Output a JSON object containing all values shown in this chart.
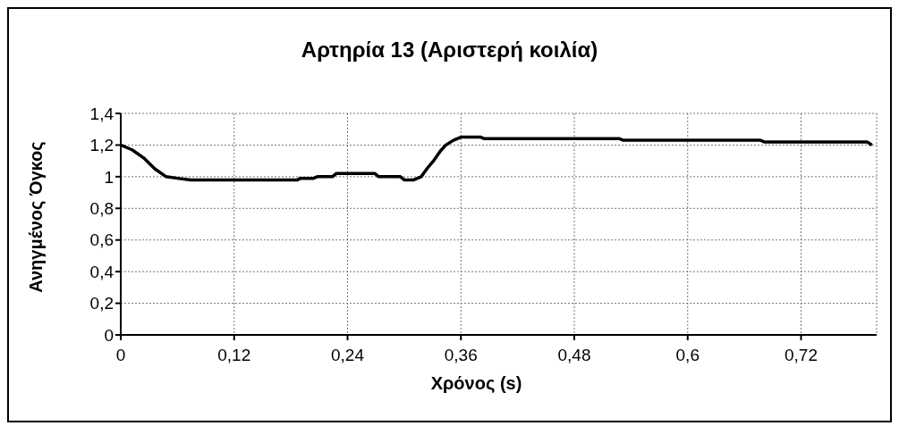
{
  "chart_data": {
    "type": "line",
    "title": "Αρτηρία 13 (Αριστερή κοιλία)",
    "xlabel": "Χρόνος (s)",
    "ylabel": "Ανηγμένος Όγκος",
    "x": [
      0,
      0.012,
      0.024,
      0.036,
      0.048,
      0.06,
      0.074,
      0.12,
      0.187,
      0.19,
      0.204,
      0.208,
      0.224,
      0.228,
      0.269,
      0.273,
      0.296,
      0.3,
      0.31,
      0.318,
      0.324,
      0.331,
      0.338,
      0.344,
      0.352,
      0.36,
      0.381,
      0.385,
      0.528,
      0.532,
      0.677,
      0.681,
      0.79,
      0.795
    ],
    "series": [
      {
        "color": "#000000",
        "values": [
          1.2,
          1.17,
          1.12,
          1.05,
          1.0,
          0.99,
          0.98,
          0.98,
          0.98,
          0.99,
          0.99,
          1.0,
          1.0,
          1.02,
          1.02,
          1.0,
          1.0,
          0.98,
          0.98,
          1.0,
          1.05,
          1.1,
          1.16,
          1.2,
          1.23,
          1.25,
          1.25,
          1.24,
          1.24,
          1.23,
          1.23,
          1.22,
          1.22,
          1.2
        ]
      }
    ],
    "xlim": [
      0,
      0.8
    ],
    "xticks": [
      {
        "value": 0,
        "label": "0"
      },
      {
        "value": 0.12,
        "label": "0,12"
      },
      {
        "value": 0.24,
        "label": "0,24"
      },
      {
        "value": 0.36,
        "label": "0,36"
      },
      {
        "value": 0.48,
        "label": "0,48"
      },
      {
        "value": 0.6,
        "label": "0,6"
      },
      {
        "value": 0.72,
        "label": "0,72"
      }
    ],
    "ylim": [
      0,
      1.4
    ],
    "yticks": [
      {
        "value": 0,
        "label": "0"
      },
      {
        "value": 0.2,
        "label": "0,2"
      },
      {
        "value": 0.4,
        "label": "0,4"
      },
      {
        "value": 0.6,
        "label": "0,6"
      },
      {
        "value": 0.8,
        "label": "0,8"
      },
      {
        "value": 1,
        "label": "1"
      },
      {
        "value": 1.2,
        "label": "1,2"
      },
      {
        "value": 1.4,
        "label": "1,4"
      }
    ],
    "grid": true,
    "marker": "none",
    "line_style": "solid"
  }
}
